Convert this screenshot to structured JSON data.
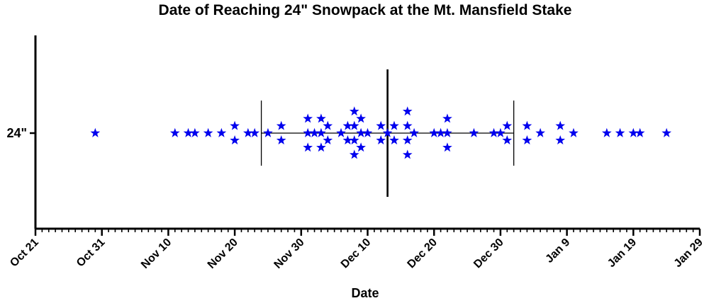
{
  "colors": {
    "marker": "#0000ee",
    "axis": "#000000",
    "summary": "#000000"
  },
  "chart_data": {
    "type": "scatter",
    "title": "Date of Reaching 24\" Snowpack at the Mt. Mansfield Stake",
    "xlabel": "Date",
    "ylabel": "",
    "y_category": "24\"",
    "x_axis": {
      "type": "date",
      "range": [
        "Oct 21",
        "Jan 29"
      ],
      "tick_labels": [
        "Oct 21",
        "Oct 31",
        "Nov 10",
        "Nov 20",
        "Nov 30",
        "Dec 10",
        "Dec 20",
        "Dec 30",
        "Jan 9",
        "Jan 19",
        "Jan 29"
      ],
      "minor_tick_interval_days": 1
    },
    "marker": "star",
    "points": [
      "Oct 30",
      "Nov 11",
      "Nov 13",
      "Nov 14",
      "Nov 16",
      "Nov 18",
      "Nov 20",
      "Nov 20",
      "Nov 22",
      "Nov 23",
      "Nov 25",
      "Nov 27",
      "Nov 27",
      "Dec 1",
      "Dec 1",
      "Dec 1",
      "Dec 2",
      "Dec 3",
      "Dec 3",
      "Dec 3",
      "Dec 4",
      "Dec 4",
      "Dec 6",
      "Dec 7",
      "Dec 7",
      "Dec 8",
      "Dec 8",
      "Dec 8",
      "Dec 8",
      "Dec 9",
      "Dec 9",
      "Dec 9",
      "Dec 10",
      "Dec 12",
      "Dec 12",
      "Dec 13",
      "Dec 14",
      "Dec 14",
      "Dec 16",
      "Dec 16",
      "Dec 16",
      "Dec 16",
      "Dec 17",
      "Dec 20",
      "Dec 21",
      "Dec 22",
      "Dec 22",
      "Dec 22",
      "Dec 26",
      "Dec 29",
      "Dec 30",
      "Dec 31",
      "Dec 31",
      "Jan 3",
      "Jan 3",
      "Jan 5",
      "Jan 8",
      "Jan 8",
      "Jan 10",
      "Jan 15",
      "Jan 17",
      "Jan 19",
      "Jan 20",
      "Jan 24"
    ],
    "summary": {
      "mean": "Dec 13",
      "sd_low": "Nov 24",
      "sd_high": "Jan 1"
    },
    "grid": false,
    "legend": "none"
  }
}
